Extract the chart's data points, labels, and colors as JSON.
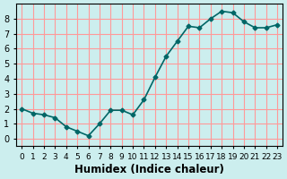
{
  "x": [
    0,
    1,
    2,
    3,
    4,
    5,
    6,
    7,
    8,
    9,
    10,
    11,
    12,
    13,
    14,
    15,
    16,
    17,
    18,
    19,
    20,
    21,
    22,
    23
  ],
  "y": [
    2.0,
    1.7,
    1.6,
    1.4,
    0.8,
    0.5,
    0.2,
    1.0,
    1.9,
    1.9,
    1.6,
    2.6,
    4.1,
    5.5,
    6.5,
    7.5,
    7.4,
    8.0,
    8.5,
    8.4,
    7.8,
    7.4,
    7.4,
    7.6
  ],
  "line_color": "#006666",
  "marker_color": "#006666",
  "bg_color": "#cceeee",
  "grid_color": "#ff9999",
  "xlabel": "Humidex (Indice chaleur)",
  "xlim": [
    -0.5,
    23.5
  ],
  "ylim": [
    -0.5,
    9.0
  ],
  "yticks": [
    0,
    1,
    2,
    3,
    4,
    5,
    6,
    7,
    8
  ],
  "xtick_labels": [
    "0",
    "1",
    "2",
    "3",
    "4",
    "5",
    "6",
    "7",
    "8",
    "9",
    "10",
    "11",
    "12",
    "13",
    "14",
    "15",
    "16",
    "17",
    "18",
    "19",
    "20",
    "21",
    "22",
    "23"
  ],
  "font_color": "#000000",
  "tick_fontsize": 7,
  "xlabel_fontsize": 8.5
}
